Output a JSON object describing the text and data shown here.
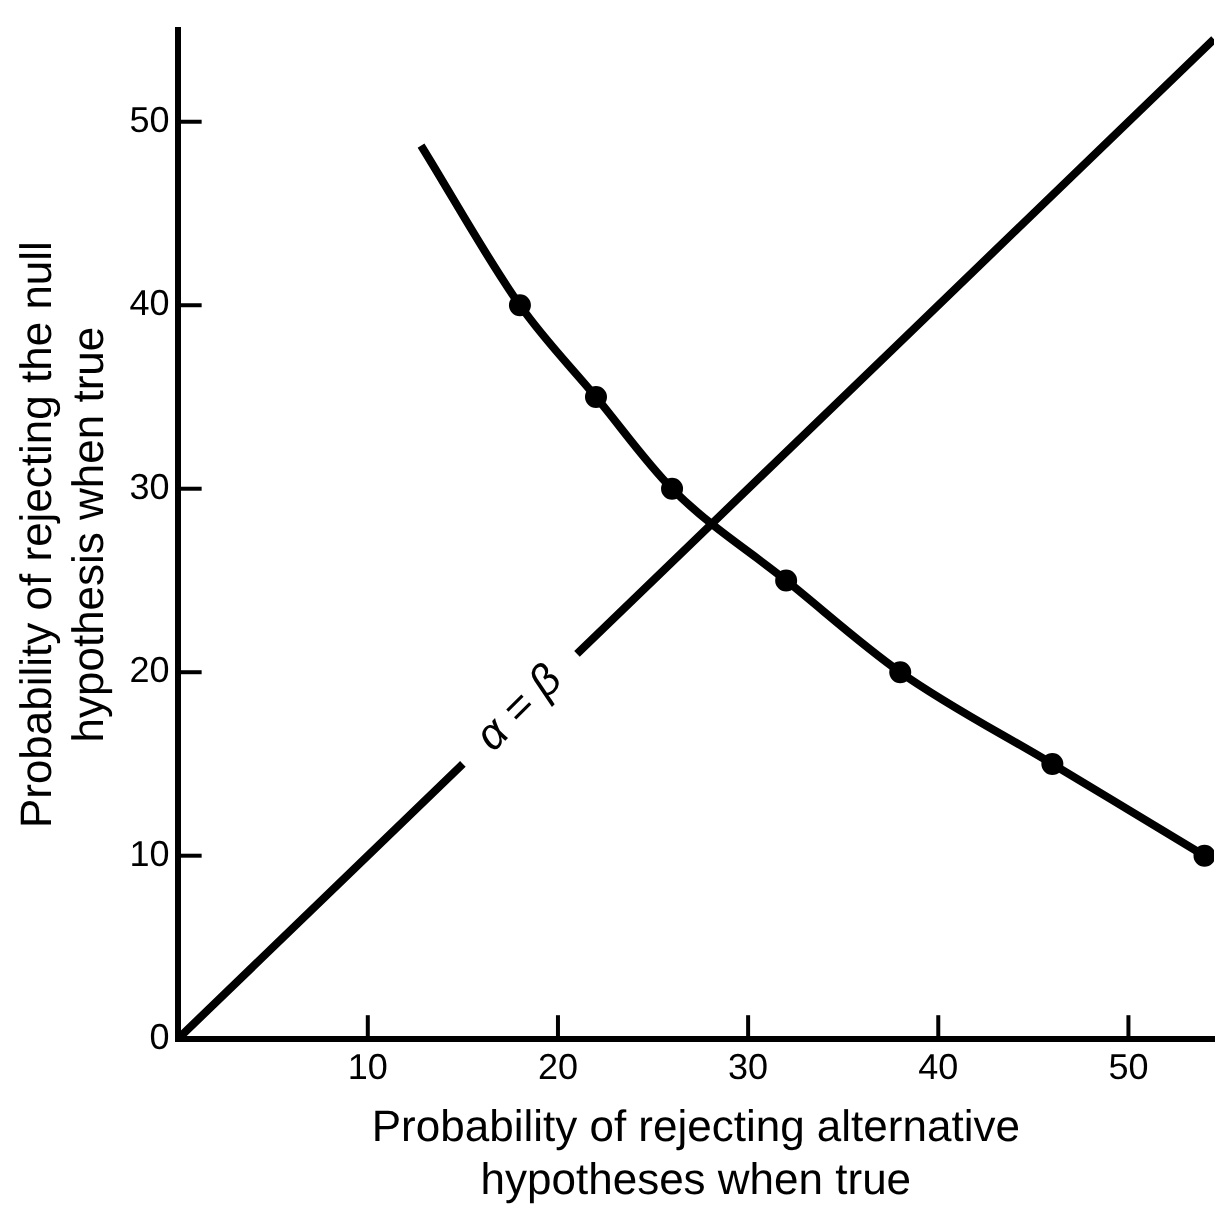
{
  "chart_data": {
    "type": "line",
    "xlabel": "Probability of rejecting alternative\nhypotheses when true",
    "ylabel": "Probability of rejecting the null\nhypothesis when true",
    "xlim": [
      0,
      54.5
    ],
    "ylim": [
      0,
      55
    ],
    "xticks": [
      10,
      20,
      30,
      40,
      50
    ],
    "yticks": [
      0,
      10,
      20,
      30,
      40,
      50
    ],
    "grid": false,
    "legend": false,
    "series": [
      {
        "color": "#000000",
        "marker": "none",
        "x": [
          12.8,
          18,
          22,
          26,
          32,
          38,
          46,
          54
        ],
        "values": [
          48.7,
          40,
          35,
          30,
          25,
          20,
          15,
          10
        ]
      },
      {
        "type": "scatter",
        "color": "#000000",
        "marker": "circle",
        "x": [
          18,
          22,
          26,
          32,
          38,
          46,
          54
        ],
        "values": [
          40,
          35,
          30,
          25,
          20,
          15,
          10
        ]
      },
      {
        "color": "#000000",
        "marker": "none",
        "x": [
          0,
          15,
          18,
          21,
          54.5
        ],
        "values": [
          0,
          15,
          null,
          21,
          54.5
        ]
      }
    ],
    "annotations": [
      "α = β"
    ]
  }
}
